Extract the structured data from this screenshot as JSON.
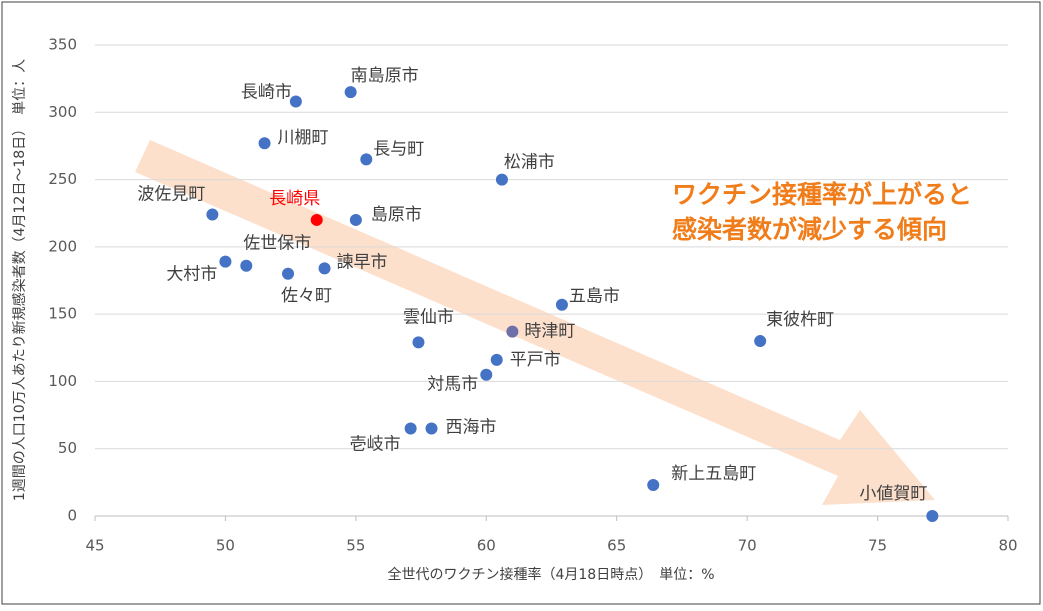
{
  "chart_data": {
    "type": "scatter",
    "x_label": "全世代のワクチン接種率（4月18日時点）　単位：%",
    "y_label": "1週間の人口10万人あたり新規感染者数（4月12日～18日）　単位：人",
    "annotation": [
      "ワクチン接種率が上がると",
      "感染者数が減少する傾向"
    ],
    "annotation_color": "#f07d1a",
    "labels": [
      "南島原市",
      "長崎市",
      "川棚町",
      "長与町",
      "松浦市",
      "波佐見町",
      "長崎県",
      "島原市",
      "佐世保市",
      "大村市",
      "佐々町",
      "諫早市",
      "五島市",
      "雲仙市",
      "時津町",
      "東彼杵町",
      "平戸市",
      "対馬市",
      "壱岐市",
      "西海市",
      "新上五島町",
      "小値賀町"
    ],
    "x": [
      54.8,
      52.7,
      51.5,
      55.4,
      60.6,
      49.5,
      53.5,
      55.0,
      50.8,
      50.0,
      52.4,
      53.8,
      62.9,
      57.4,
      61.0,
      70.5,
      60.4,
      60.0,
      57.1,
      57.9,
      66.4,
      77.1
    ],
    "values": [
      315,
      308,
      277,
      265,
      250,
      224,
      220,
      220,
      186,
      189,
      180,
      184,
      157,
      129,
      137,
      130,
      116,
      105,
      65,
      65,
      23,
      0
    ],
    "colors": [
      "#4472c4",
      "#4472c4",
      "#4472c4",
      "#4472c4",
      "#4472c4",
      "#4472c4",
      "#ff0000",
      "#4472c4",
      "#4472c4",
      "#4472c4",
      "#4472c4",
      "#4472c4",
      "#4472c4",
      "#4472c4",
      "#7070a8",
      "#4472c4",
      "#4472c4",
      "#4472c4",
      "#4472c4",
      "#4472c4",
      "#4472c4",
      "#4472c4"
    ],
    "label_colors": [
      "#404040",
      "#404040",
      "#404040",
      "#404040",
      "#404040",
      "#404040",
      "#ff0000",
      "#404040",
      "#404040",
      "#404040",
      "#404040",
      "#404040",
      "#404040",
      "#404040",
      "#404040",
      "#404040",
      "#404040",
      "#404040",
      "#404040",
      "#404040",
      "#404040",
      "#404040"
    ],
    "xlim": [
      45,
      80
    ],
    "xticks": [
      45,
      50,
      55,
      60,
      65,
      70,
      75,
      80
    ],
    "ylim": [
      0,
      350
    ],
    "yticks": [
      0,
      50,
      100,
      150,
      200,
      250,
      300,
      350
    ],
    "grid": true
  }
}
